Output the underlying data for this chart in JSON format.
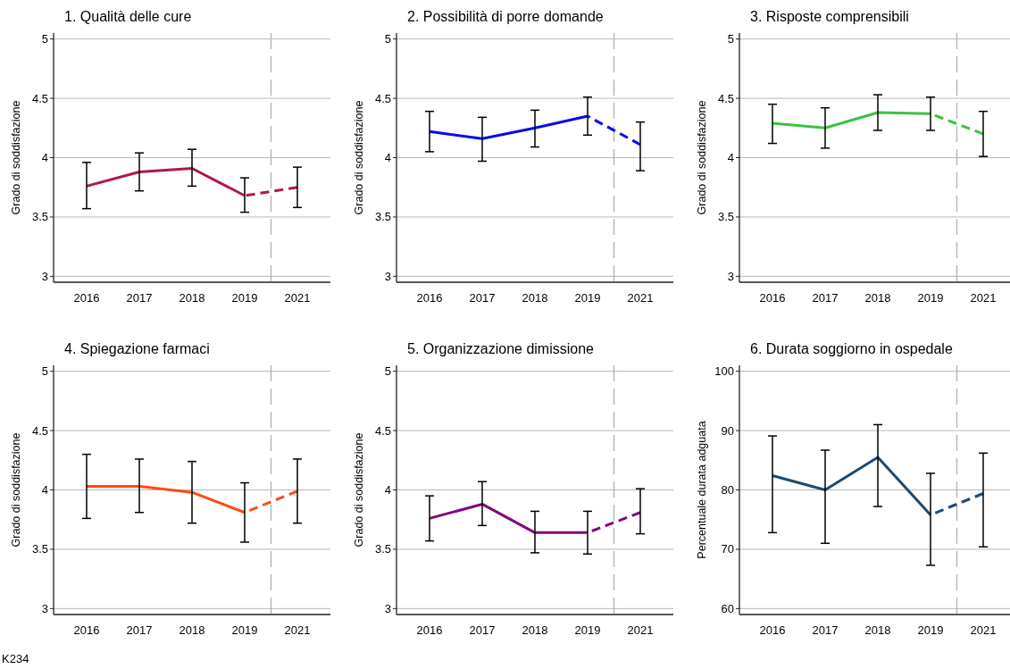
{
  "chart_data": [
    {
      "type": "line",
      "title": "1. Qualità delle cure",
      "ylabel": "Grado di soddisfazione",
      "categories": [
        "2016",
        "2017",
        "2018",
        "2019",
        "2021"
      ],
      "ylim": [
        2.95,
        5.05
      ],
      "yticks": [
        3,
        3.5,
        4,
        4.5,
        5
      ],
      "grid": "y",
      "series": [
        {
          "color": "#ad1a42",
          "line_style": "solid",
          "values": [
            3.76,
            3.88,
            3.91,
            3.68,
            null
          ],
          "errors": [
            [
              3.57,
              3.96
            ],
            [
              3.72,
              4.04
            ],
            [
              3.76,
              4.07
            ],
            [
              3.54,
              3.83
            ],
            null
          ]
        },
        {
          "color": "#ad1a42",
          "line_style": "dashed",
          "values": [
            null,
            null,
            null,
            3.68,
            3.75
          ],
          "errors": [
            null,
            null,
            null,
            null,
            [
              3.58,
              3.92
            ]
          ]
        }
      ]
    },
    {
      "type": "line",
      "title": "2. Possibilità di porre domande",
      "ylabel": "Grado di soddisfazione",
      "categories": [
        "2016",
        "2017",
        "2018",
        "2019",
        "2021"
      ],
      "ylim": [
        2.95,
        5.05
      ],
      "yticks": [
        3,
        3.5,
        4,
        4.5,
        5
      ],
      "grid": "y",
      "series": [
        {
          "color": "#0a0aee",
          "line_style": "solid",
          "values": [
            4.22,
            4.16,
            4.25,
            4.35,
            null
          ],
          "errors": [
            [
              4.05,
              4.39
            ],
            [
              3.97,
              4.34
            ],
            [
              4.09,
              4.4
            ],
            [
              4.19,
              4.51
            ],
            null
          ]
        },
        {
          "color": "#0a0aee",
          "line_style": "dashed",
          "values": [
            null,
            null,
            null,
            4.35,
            4.11
          ],
          "errors": [
            null,
            null,
            null,
            null,
            [
              3.89,
              4.3
            ]
          ]
        }
      ]
    },
    {
      "type": "line",
      "title": "3. Risposte comprensibili",
      "ylabel": "Grado di soddisfazione",
      "categories": [
        "2016",
        "2017",
        "2018",
        "2019",
        "2021"
      ],
      "ylim": [
        2.95,
        5.05
      ],
      "yticks": [
        3,
        3.5,
        4,
        4.5,
        5
      ],
      "grid": "y",
      "series": [
        {
          "color": "#3cc33c",
          "line_style": "solid",
          "values": [
            4.29,
            4.25,
            4.38,
            4.37,
            null
          ],
          "errors": [
            [
              4.12,
              4.45
            ],
            [
              4.08,
              4.42
            ],
            [
              4.23,
              4.53
            ],
            [
              4.23,
              4.51
            ],
            null
          ]
        },
        {
          "color": "#3cc33c",
          "line_style": "dashed",
          "values": [
            null,
            null,
            null,
            4.37,
            4.2
          ],
          "errors": [
            null,
            null,
            null,
            null,
            [
              4.01,
              4.39
            ]
          ]
        }
      ]
    },
    {
      "type": "line",
      "title": "4. Spiegazione farmaci",
      "ylabel": "Grado di soddisfazione",
      "categories": [
        "2016",
        "2017",
        "2018",
        "2019",
        "2021"
      ],
      "ylim": [
        2.95,
        5.05
      ],
      "yticks": [
        3,
        3.5,
        4,
        4.5,
        5
      ],
      "grid": "y",
      "annotations": [
        "K234"
      ],
      "series": [
        {
          "color": "#ff4a12",
          "line_style": "solid",
          "values": [
            4.03,
            4.03,
            3.98,
            3.81,
            null
          ],
          "errors": [
            [
              3.76,
              4.3
            ],
            [
              3.81,
              4.26
            ],
            [
              3.72,
              4.24
            ],
            [
              3.56,
              4.06
            ],
            null
          ]
        },
        {
          "color": "#ff4a12",
          "line_style": "dashed",
          "values": [
            null,
            null,
            null,
            3.81,
            3.99
          ],
          "errors": [
            null,
            null,
            null,
            null,
            [
              3.72,
              4.26
            ]
          ]
        }
      ]
    },
    {
      "type": "line",
      "title": "5. Organizzazione dimissione",
      "ylabel": "Grado di soddisfazione",
      "categories": [
        "2016",
        "2017",
        "2018",
        "2019",
        "2021"
      ],
      "ylim": [
        2.95,
        5.05
      ],
      "yticks": [
        3,
        3.5,
        4,
        4.5,
        5
      ],
      "grid": "y",
      "series": [
        {
          "color": "#82087f",
          "line_style": "solid",
          "values": [
            3.76,
            3.88,
            3.64,
            3.64,
            null
          ],
          "errors": [
            [
              3.57,
              3.95
            ],
            [
              3.7,
              4.07
            ],
            [
              3.47,
              3.82
            ],
            [
              3.46,
              3.82
            ],
            null
          ]
        },
        {
          "color": "#82087f",
          "line_style": "dashed",
          "values": [
            null,
            null,
            null,
            3.64,
            3.81
          ],
          "errors": [
            null,
            null,
            null,
            null,
            [
              3.63,
              4.01
            ]
          ]
        }
      ]
    },
    {
      "type": "line",
      "title": "6. Durata soggiorno in ospedale",
      "ylabel": "Percentuale durata adguata",
      "categories": [
        "2016",
        "2017",
        "2018",
        "2019",
        "2021"
      ],
      "ylim": [
        59,
        101
      ],
      "yticks": [
        60,
        70,
        80,
        90,
        100
      ],
      "grid": "y",
      "series": [
        {
          "color": "#1f4a6e",
          "line_style": "solid",
          "values": [
            82.4,
            80.0,
            85.5,
            75.8,
            null
          ],
          "errors": [
            [
              72.8,
              89.1
            ],
            [
              71.0,
              86.7
            ],
            [
              77.2,
              91.0
            ],
            [
              67.3,
              82.8
            ],
            null
          ]
        },
        {
          "color": "#1f4a6e",
          "line_style": "dashed",
          "values": [
            null,
            null,
            null,
            75.8,
            79.4
          ],
          "errors": [
            null,
            null,
            null,
            null,
            [
              70.4,
              86.2
            ]
          ]
        }
      ]
    }
  ]
}
